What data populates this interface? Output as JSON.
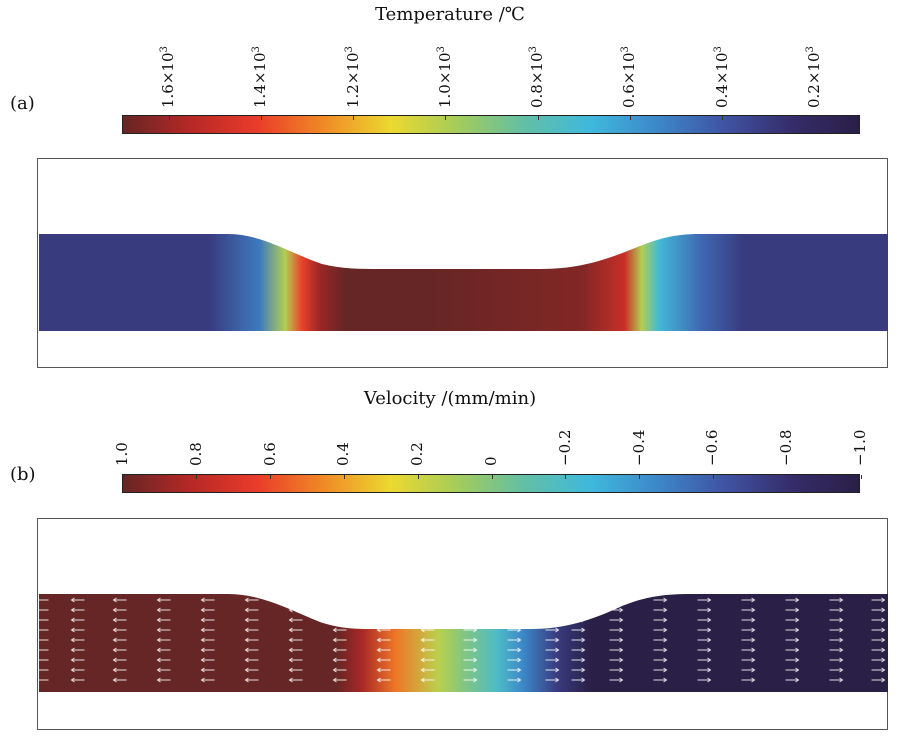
{
  "chart_data": [
    {
      "panel": "(a)",
      "type": "heatmap",
      "title": "Temperature /℃",
      "colorbar": {
        "range": [
          1700,
          100
        ],
        "tick_values": [
          1600,
          1400,
          1200,
          1000,
          800,
          600,
          400,
          200
        ],
        "tick_labels": [
          {
            "mantissa": "1.6×10",
            "exp": "3"
          },
          {
            "mantissa": "1.4×10",
            "exp": "3"
          },
          {
            "mantissa": "1.2×10",
            "exp": "3"
          },
          {
            "mantissa": "1.0×10",
            "exp": "3"
          },
          {
            "mantissa": "0.8×10",
            "exp": "3"
          },
          {
            "mantissa": "0.6×10",
            "exp": "3"
          },
          {
            "mantissa": "0.4×10",
            "exp": "3"
          },
          {
            "mantissa": "0.2×10",
            "exp": "3"
          }
        ],
        "colors": [
          "#652625",
          "#b52826",
          "#ea3b2a",
          "#f08a26",
          "#ecd930",
          "#a4cc5a",
          "#62bfa5",
          "#3fb8dd",
          "#3d87c8",
          "#3f53a3",
          "#352c6a",
          "#2a1f47"
        ]
      },
      "profile": {
        "description": "temperature along specimen, hot in narrowed center, cold at ends",
        "x": [
          0,
          0.2,
          0.26,
          0.29,
          0.31,
          0.33,
          0.36,
          0.45,
          0.64,
          0.69,
          0.71,
          0.73,
          0.78,
          0.83,
          1.0
        ],
        "value": [
          300,
          300,
          500,
          1000,
          1400,
          1600,
          1700,
          1700,
          1650,
          1500,
          1000,
          700,
          450,
          300,
          300
        ]
      }
    },
    {
      "panel": "(b)",
      "type": "heatmap",
      "title": "Velocity /(mm/min)",
      "colorbar": {
        "range": [
          1.0,
          -1.0
        ],
        "tick_values": [
          1.0,
          0.8,
          0.6,
          0.4,
          0.2,
          0,
          -0.2,
          -0.4,
          -0.6,
          -0.8,
          -1.0
        ],
        "tick_labels": [
          "1.0",
          "0.8",
          "0.6",
          "0.4",
          "0.2",
          "0",
          "−0.2",
          "−0.4",
          "−0.6",
          "−0.8",
          "−1.0"
        ],
        "colors": [
          "#652625",
          "#b52826",
          "#ea3b2a",
          "#f08a26",
          "#ecd930",
          "#a4cc5a",
          "#62bfa5",
          "#3fb8dd",
          "#3d87c8",
          "#3f53a3",
          "#352c6a",
          "#2a1f47"
        ]
      },
      "profile": {
        "description": "axial velocity, +1 on left grip, -1 on right grip, gradient across neck",
        "x": [
          0,
          0.35,
          0.38,
          0.42,
          0.47,
          0.5,
          0.54,
          0.57,
          0.61,
          0.65,
          1.0
        ],
        "value": [
          1.0,
          1.0,
          0.85,
          0.5,
          0.15,
          0,
          -0.2,
          -0.45,
          -0.75,
          -1.0,
          -1.0
        ]
      },
      "arrows": "white velocity vectors pointing left on left side, right on right side"
    }
  ]
}
